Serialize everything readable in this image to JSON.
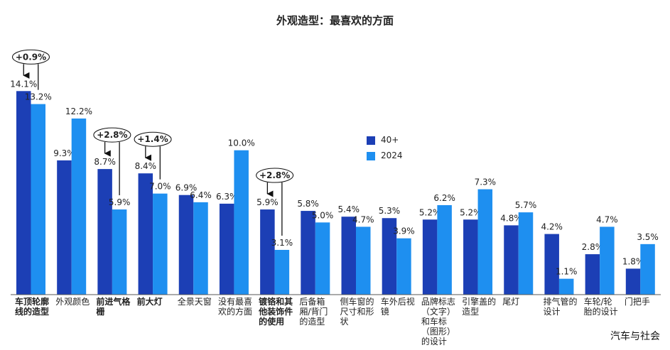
{
  "chart_data": {
    "type": "bar",
    "title": "外观造型：最喜欢的方面",
    "categories": [
      "车顶轮廓线的造型",
      "外观颜色",
      "前进气格栅",
      "前大灯",
      "全景天窗",
      "没有最喜欢的方面",
      "镀铬和其他装饰件的使用",
      "后备箱厢/背门的造型",
      "侧车窗的尺寸和形状",
      "车外后视镜",
      "品牌标志（文字）和车标（图形）的设计",
      "引擎盖的造型",
      "尾灯",
      "排气管的设计",
      "车轮/轮胎的设计",
      "门把手"
    ],
    "series": [
      {
        "name": "40+",
        "color": "#1c3fb5",
        "values": [
          14.1,
          9.3,
          8.7,
          8.4,
          6.9,
          6.3,
          5.9,
          5.8,
          5.4,
          5.3,
          5.2,
          5.2,
          4.8,
          4.2,
          2.8,
          1.8
        ],
        "value_labels": [
          "14.1%",
          "9.3%",
          "8.7%",
          "8.4%",
          "6.9%",
          "6.3%",
          "5.9%",
          "5.8%",
          "5.4%",
          "5.3%",
          "5.2%",
          "5.2%",
          "4.8%",
          "4.2%",
          "2.8%",
          "1.8%"
        ]
      },
      {
        "name": "2024",
        "color": "#1e8ff0",
        "values": [
          13.2,
          12.2,
          5.9,
          7.0,
          6.4,
          10.0,
          3.1,
          5.0,
          4.7,
          3.9,
          6.2,
          7.3,
          5.7,
          1.1,
          4.7,
          3.5
        ],
        "value_labels": [
          "13.2%",
          "12.2%",
          "5.9%",
          "7.0%",
          "6.4%",
          "10.0%",
          "3.1%",
          "5.0%",
          "4.7%",
          "3.9%",
          "6.2%",
          "7.3%",
          "5.7%",
          "1.1%",
          "4.7%",
          "3.5%"
        ]
      }
    ],
    "ylim": [
      0,
      15
    ],
    "annotations": [
      {
        "category": "车顶轮廓线的造型",
        "text": "+0.9%"
      },
      {
        "category": "前进气格栅",
        "text": "+2.8%"
      },
      {
        "category": "前大灯",
        "text": "+1.4%"
      },
      {
        "category": "镀铬和其他装饰件的使用",
        "text": "+2.8%"
      }
    ],
    "watermark": "汽车与社会"
  }
}
